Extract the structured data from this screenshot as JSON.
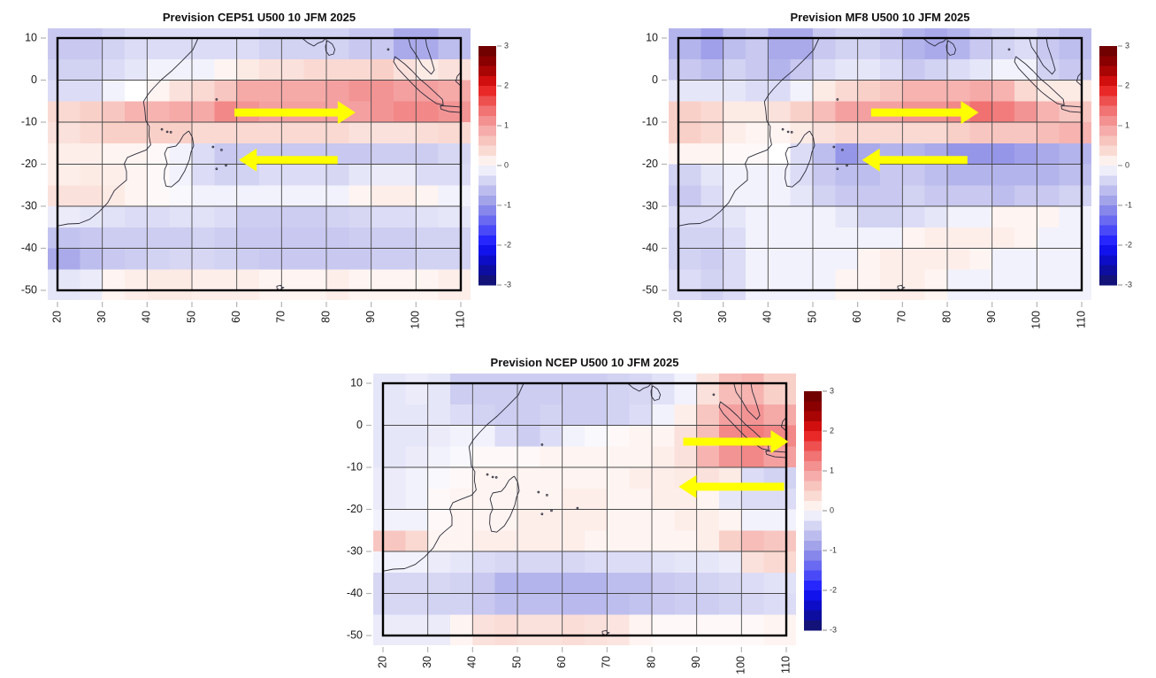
{
  "page": {
    "background": "#ffffff"
  },
  "colormap": {
    "stops": [
      [
        -3,
        "#141464"
      ],
      [
        -2.5,
        "#0a0ab4"
      ],
      [
        -2,
        "#1414ff"
      ],
      [
        -1.5,
        "#5a5af5"
      ],
      [
        -1,
        "#9696e8"
      ],
      [
        -0.5,
        "#c8c8f0"
      ],
      [
        -0.15,
        "#ebebfa"
      ],
      [
        0,
        "#ffffff"
      ],
      [
        0.15,
        "#fdeeea"
      ],
      [
        0.5,
        "#f9d0c8"
      ],
      [
        1,
        "#f4a0a0"
      ],
      [
        1.5,
        "#f06464"
      ],
      [
        2,
        "#e61414"
      ],
      [
        2.5,
        "#960000"
      ],
      [
        3,
        "#640000"
      ]
    ]
  },
  "style": {
    "arrow_color": "#ffff00",
    "coast_color": "#2b2b3a",
    "grid_color": "#4a4a4a",
    "frame_color": "#000000",
    "tick_color": "#b3b3b3",
    "label_color": "#1a1a1a",
    "colorbar_tick_color": "#888888"
  },
  "chart_data": [
    {
      "type": "heatmap",
      "title": "Prevision CEP51 U500 10 JFM 2025",
      "xlabel": "",
      "ylabel": "",
      "xlim": [
        20,
        110
      ],
      "ylim": [
        -50,
        10
      ],
      "x_ticks": [
        20,
        30,
        40,
        50,
        60,
        70,
        80,
        90,
        100,
        110
      ],
      "y_ticks": [
        10,
        0,
        -10,
        -20,
        -30,
        -40,
        -50
      ],
      "grid_on": true,
      "colorbar_range": [
        -3,
        3
      ],
      "colorbar_step": 0.25,
      "colorbar_ticks": [
        3,
        2,
        1,
        0,
        -1,
        -2,
        -3
      ],
      "arrows": [
        {
          "direction": "right",
          "lat": -7.7,
          "lon_from": 59.5,
          "lon_to": 86.5
        },
        {
          "direction": "left",
          "lat": -19.0,
          "lon_from": 82.5,
          "lon_to": 60.5
        }
      ],
      "heatmap": {
        "lon_start": 20,
        "lon_step": 5,
        "lat_start": 10,
        "lat_step": -5,
        "values": [
          [
            -0.5,
            -0.5,
            -0.4,
            -0.3,
            -0.3,
            -0.3,
            -0.3,
            -0.3,
            -0.3,
            -0.4,
            -0.4,
            -0.4,
            -0.4,
            -0.5,
            -0.5,
            -0.8,
            -0.8,
            -0.6
          ],
          [
            -0.4,
            -0.4,
            -0.3,
            -0.2,
            -0.1,
            -0.1,
            -0.1,
            0.1,
            0.2,
            0.3,
            0.3,
            0.4,
            0.4,
            0.4,
            0.5,
            0.3,
            0.2,
            0.3
          ],
          [
            -0.3,
            -0.3,
            -0.1,
            0.0,
            0.1,
            0.3,
            0.4,
            0.6,
            0.9,
            0.9,
            0.9,
            0.9,
            1.0,
            1.1,
            1.1,
            1.0,
            1.0,
            0.9
          ],
          [
            0.4,
            0.5,
            0.6,
            0.8,
            0.8,
            0.9,
            0.9,
            1.2,
            1.1,
            1.0,
            1.0,
            1.0,
            1.0,
            1.0,
            1.1,
            1.2,
            1.2,
            1.1
          ],
          [
            0.3,
            0.4,
            0.5,
            0.5,
            0.5,
            0.5,
            0.4,
            0.4,
            0.4,
            0.4,
            0.4,
            0.4,
            0.4,
            0.3,
            0.3,
            0.3,
            0.35,
            0.4
          ],
          [
            0.15,
            0.15,
            0.1,
            0.1,
            0.05,
            -0.1,
            -0.3,
            -0.5,
            -0.5,
            -0.5,
            -0.5,
            -0.5,
            -0.5,
            -0.5,
            -0.45,
            -0.45,
            -0.45,
            -0.35
          ],
          [
            0.15,
            0.2,
            0.15,
            0.1,
            0.05,
            -0.1,
            -0.3,
            -0.4,
            -0.4,
            -0.3,
            -0.3,
            -0.3,
            -0.35,
            -0.2,
            -0.15,
            -0.15,
            -0.3,
            -0.3
          ],
          [
            0.3,
            0.3,
            0.2,
            0.1,
            0.05,
            -0.05,
            -0.1,
            -0.1,
            -0.1,
            -0.1,
            -0.1,
            -0.1,
            -0.1,
            0.1,
            0.15,
            0.15,
            0.1,
            -0.1
          ],
          [
            -0.15,
            -0.2,
            -0.25,
            -0.3,
            -0.3,
            -0.25,
            -0.25,
            -0.3,
            -0.45,
            -0.45,
            -0.45,
            -0.45,
            -0.4,
            -0.35,
            -0.3,
            -0.3,
            -0.25,
            -0.2
          ],
          [
            -0.55,
            -0.5,
            -0.45,
            -0.45,
            -0.45,
            -0.45,
            -0.4,
            -0.45,
            -0.5,
            -0.5,
            -0.5,
            -0.5,
            -0.5,
            -0.45,
            -0.45,
            -0.45,
            -0.4,
            -0.4
          ],
          [
            -0.8,
            -0.6,
            -0.5,
            -0.45,
            -0.4,
            -0.35,
            -0.35,
            -0.4,
            -0.45,
            -0.5,
            -0.5,
            -0.5,
            -0.5,
            -0.5,
            -0.45,
            -0.45,
            -0.4,
            -0.4
          ],
          [
            -0.2,
            -0.15,
            0.1,
            0.15,
            0.2,
            0.2,
            0.15,
            0.15,
            0.15,
            0.1,
            0.1,
            0.1,
            0.15,
            0.1,
            0.1,
            0.1,
            0.1,
            0.15
          ]
        ]
      }
    },
    {
      "type": "heatmap",
      "title": "Prevision MF8 U500 10 JFM 2025",
      "xlabel": "",
      "ylabel": "",
      "xlim": [
        20,
        110
      ],
      "ylim": [
        -50,
        10
      ],
      "x_ticks": [
        20,
        30,
        40,
        50,
        60,
        70,
        80,
        90,
        100,
        110
      ],
      "y_ticks": [
        10,
        0,
        -10,
        -20,
        -30,
        -40,
        -50
      ],
      "grid_on": true,
      "colorbar_range": [
        -3,
        3
      ],
      "colorbar_step": 0.25,
      "colorbar_ticks": [
        3,
        2,
        1,
        0,
        -1,
        -2,
        -3
      ],
      "arrows": [
        {
          "direction": "right",
          "lat": -7.7,
          "lon_from": 63.0,
          "lon_to": 87.0
        },
        {
          "direction": "left",
          "lat": -19.0,
          "lon_from": 84.5,
          "lon_to": 61.0
        }
      ],
      "heatmap": {
        "lon_start": 20,
        "lon_step": 5,
        "lat_start": 10,
        "lat_step": -5,
        "values": [
          [
            -0.7,
            -0.9,
            -0.6,
            -0.5,
            -0.8,
            -0.8,
            -0.5,
            -0.4,
            -0.4,
            -0.5,
            -0.7,
            -0.8,
            -0.7,
            -0.5,
            -0.4,
            -0.3,
            -0.5,
            -0.6
          ],
          [
            -0.5,
            -0.6,
            -0.4,
            -0.5,
            -0.7,
            -0.5,
            -0.3,
            -0.2,
            -0.2,
            -0.3,
            -0.5,
            -0.4,
            -0.3,
            -0.2,
            -0.1,
            -0.1,
            -0.4,
            -0.5
          ],
          [
            -0.2,
            -0.2,
            -0.2,
            -0.3,
            -0.3,
            -0.1,
            0.2,
            0.4,
            0.5,
            0.6,
            0.8,
            0.8,
            0.8,
            0.9,
            0.8,
            0.4,
            0.2,
            0.2
          ],
          [
            0.5,
            0.4,
            0.2,
            0.2,
            0.3,
            0.5,
            0.7,
            1.0,
            1.0,
            1.0,
            1.1,
            1.1,
            1.2,
            1.4,
            1.3,
            1.1,
            0.8,
            0.6
          ],
          [
            0.5,
            0.4,
            0.15,
            0.1,
            0.1,
            0.2,
            0.3,
            0.4,
            0.4,
            0.4,
            0.4,
            0.4,
            0.5,
            0.6,
            0.6,
            0.6,
            0.7,
            0.8
          ],
          [
            0.1,
            0.1,
            0.05,
            0.05,
            0.0,
            -0.3,
            -0.6,
            -1.0,
            -0.8,
            -0.7,
            -0.7,
            -0.8,
            -1.0,
            -1.0,
            -1.0,
            -0.9,
            -0.8,
            -0.7
          ],
          [
            -0.4,
            -0.2,
            -0.1,
            -0.1,
            -0.1,
            -0.3,
            -0.5,
            -0.6,
            -0.6,
            -0.5,
            -0.5,
            -0.6,
            -0.7,
            -0.7,
            -0.7,
            -0.7,
            -0.7,
            -0.6
          ],
          [
            -0.5,
            -0.3,
            -0.1,
            -0.1,
            -0.1,
            -0.2,
            -0.4,
            -0.5,
            -0.5,
            -0.5,
            -0.4,
            -0.5,
            -0.5,
            -0.5,
            -0.6,
            -0.5,
            -0.5,
            -0.4
          ],
          [
            -0.3,
            -0.3,
            -0.2,
            -0.1,
            -0.1,
            -0.1,
            -0.1,
            -0.2,
            -0.4,
            -0.4,
            -0.3,
            -0.2,
            -0.1,
            -0.1,
            0.1,
            0.1,
            0.1,
            -0.1
          ],
          [
            -0.4,
            -0.4,
            -0.3,
            -0.1,
            -0.1,
            -0.1,
            -0.1,
            -0.1,
            -0.1,
            -0.1,
            0.1,
            0.15,
            0.15,
            0.15,
            0.15,
            0.1,
            -0.1,
            -0.1
          ],
          [
            -0.4,
            -0.45,
            -0.3,
            -0.1,
            -0.1,
            -0.1,
            -0.1,
            -0.1,
            0.1,
            0.15,
            0.15,
            0.15,
            0.15,
            0.1,
            -0.1,
            -0.1,
            -0.1,
            -0.1
          ],
          [
            -0.3,
            -0.4,
            -0.3,
            -0.1,
            -0.1,
            -0.1,
            -0.1,
            0.1,
            0.1,
            0.15,
            0.15,
            0.1,
            -0.1,
            -0.1,
            -0.1,
            -0.1,
            -0.1,
            -0.1
          ]
        ]
      }
    },
    {
      "type": "heatmap",
      "title": "Prevision NCEP U500 10 JFM 2025",
      "xlabel": "",
      "ylabel": "",
      "xlim": [
        20,
        110
      ],
      "ylim": [
        -50,
        10
      ],
      "x_ticks": [
        20,
        30,
        40,
        50,
        60,
        70,
        80,
        90,
        100,
        110
      ],
      "y_ticks": [
        10,
        0,
        -10,
        -20,
        -30,
        -40,
        -50
      ],
      "grid_on": true,
      "colorbar_range": [
        -3,
        3
      ],
      "colorbar_step": 0.25,
      "colorbar_ticks": [
        3,
        2,
        1,
        0,
        -1,
        -2,
        -3
      ],
      "arrows": [
        {
          "direction": "right",
          "lat": -3.9,
          "lon_from": 87.0,
          "lon_to": 110.5
        },
        {
          "direction": "left",
          "lat": -14.6,
          "lon_from": 109.5,
          "lon_to": 86.0
        }
      ],
      "heatmap": {
        "lon_start": 20,
        "lon_step": 5,
        "lat_start": 10,
        "lat_step": -5,
        "values": [
          [
            -0.2,
            -0.15,
            -0.2,
            -0.45,
            -0.45,
            -0.45,
            -0.45,
            -0.45,
            -0.45,
            -0.45,
            -0.4,
            -0.35,
            -0.25,
            -0.1,
            0.3,
            0.7,
            0.8,
            0.5
          ],
          [
            -0.2,
            -0.2,
            -0.2,
            -0.3,
            -0.4,
            -0.45,
            -0.45,
            -0.4,
            -0.45,
            -0.45,
            -0.4,
            -0.3,
            -0.1,
            0.15,
            0.6,
            1.0,
            1.1,
            0.9
          ],
          [
            -0.2,
            -0.2,
            -0.15,
            -0.1,
            -0.1,
            -0.3,
            -0.45,
            -0.3,
            -0.1,
            -0.05,
            0.05,
            0.1,
            0.1,
            0.3,
            0.7,
            1.2,
            1.3,
            1.2
          ],
          [
            -0.2,
            -0.15,
            -0.1,
            -0.05,
            0.05,
            0.05,
            0.05,
            0.1,
            0.1,
            0.1,
            0.1,
            0.1,
            0.15,
            0.3,
            0.8,
            1.1,
            1.2,
            1.0
          ],
          [
            -0.15,
            -0.1,
            -0.05,
            0.05,
            0.1,
            0.1,
            0.1,
            0.1,
            0.1,
            0.1,
            0.1,
            0.15,
            0.15,
            0.2,
            0.3,
            0.2,
            -0.3,
            -0.4
          ],
          [
            -0.15,
            -0.1,
            0.05,
            0.1,
            0.1,
            0.1,
            0.1,
            0.1,
            0.15,
            0.15,
            0.1,
            0.1,
            0.15,
            0.15,
            0.1,
            -0.2,
            -0.3,
            -0.3
          ],
          [
            -0.1,
            -0.1,
            0.05,
            0.1,
            0.1,
            0.1,
            0.15,
            0.15,
            0.15,
            0.15,
            0.1,
            0.1,
            0.1,
            0.15,
            0.15,
            0.1,
            -0.1,
            -0.1
          ],
          [
            0.6,
            0.4,
            0.1,
            0.1,
            0.15,
            0.15,
            0.15,
            0.15,
            0.15,
            0.1,
            0.1,
            0.1,
            0.1,
            0.1,
            0.15,
            0.5,
            0.7,
            0.6
          ],
          [
            -0.1,
            -0.1,
            -0.15,
            -0.2,
            -0.3,
            -0.35,
            -0.35,
            -0.35,
            -0.35,
            -0.3,
            -0.3,
            -0.3,
            -0.25,
            -0.2,
            -0.2,
            -0.15,
            0.3,
            0.4
          ],
          [
            -0.35,
            -0.35,
            -0.35,
            -0.4,
            -0.5,
            -0.7,
            -0.7,
            -0.7,
            -0.7,
            -0.7,
            -0.6,
            -0.6,
            -0.5,
            -0.45,
            -0.4,
            -0.35,
            -0.3,
            -0.25
          ],
          [
            -0.35,
            -0.35,
            -0.4,
            -0.4,
            -0.5,
            -0.6,
            -0.6,
            -0.6,
            -0.65,
            -0.65,
            -0.6,
            -0.55,
            -0.5,
            -0.45,
            -0.45,
            -0.4,
            -0.35,
            -0.3
          ],
          [
            -0.15,
            -0.15,
            -0.15,
            0.1,
            0.3,
            0.35,
            0.3,
            0.3,
            0.35,
            0.3,
            0.25,
            0.1,
            0.05,
            0.05,
            0.05,
            0.05,
            0.05,
            0.1
          ]
        ]
      }
    }
  ]
}
